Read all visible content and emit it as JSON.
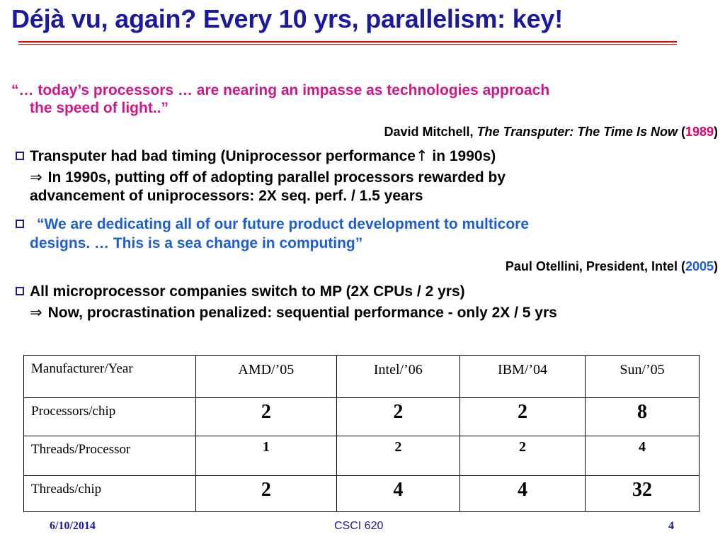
{
  "title": "Déjà vu, again? Every 10 yrs, parallelism: key!",
  "quote1": {
    "line1": "“… today’s processors … are nearing an impasse as technologies approach",
    "line2": "the speed of light..”",
    "author": "David Mitchell, ",
    "book": "The Transputer: The Time Is Now",
    "open_paren": " (",
    "year": "1989",
    "close_paren": ")"
  },
  "bullet1": {
    "text_before_arrow": "Transputer had bad timing (Uniprocessor performance",
    "arrow": "↑",
    "text_after_arrow": " in 1990s)",
    "implies": "⇒",
    "sub_line1": "In 1990s, putting off of adopting parallel processors rewarded by",
    "sub_line2": "advancement of uniprocessors: 2X seq. perf. / 1.5 years"
  },
  "quote2": {
    "line1": "“We are dedicating all of our future product development to multicore",
    "line2": "designs. … This is a sea change in computing”",
    "author": "Paul Otellini, President, Intel (",
    "year": "2005",
    "close_paren": ")"
  },
  "bullet2": {
    "text": "All microprocessor companies switch to MP (2X CPUs / 2 yrs)",
    "implies": "⇒",
    "sub_line1": "Now, procrastination penalized: sequential performance - only 2X / 5 yrs"
  },
  "table": {
    "header": [
      "Manufacturer/Year",
      "AMD/’05",
      "Intel/’06",
      "IBM/’04",
      "Sun/’05"
    ],
    "rows": [
      {
        "label": "Processors/chip",
        "values": [
          "2",
          "2",
          "2",
          "8"
        ]
      },
      {
        "label": "Threads/Processor",
        "values": [
          "1",
          "2",
          "2",
          "4"
        ]
      },
      {
        "label": "Threads/chip",
        "values": [
          "2",
          "4",
          "4",
          "32"
        ]
      }
    ]
  },
  "footer": {
    "date": "6/10/2014",
    "course": "CSCI 620",
    "page": "4"
  },
  "colors": {
    "title": "#1a1aa0",
    "title_rule": "#e00000",
    "quote1": "#d0168a",
    "quote2": "#1d5fd0",
    "year1": "#e0006a",
    "year2": "#1d5fd0"
  }
}
